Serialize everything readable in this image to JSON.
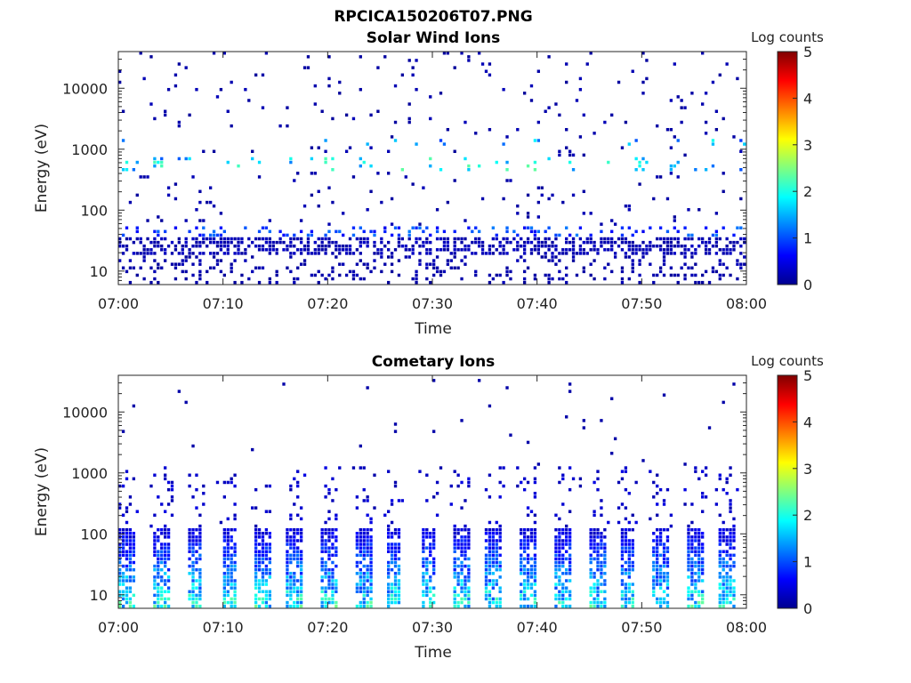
{
  "figure_title": "RPCICA150206T07.PNG",
  "chart_data": [
    {
      "type": "heatmap",
      "title": "Solar Wind Ions",
      "xlabel": "Time",
      "ylabel": "Energy (eV)",
      "x_ticks": [
        "07:00",
        "07:10",
        "07:20",
        "07:30",
        "07:40",
        "07:50",
        "08:00"
      ],
      "xlim_minutes": [
        0,
        60
      ],
      "y_scale": "log",
      "ylim": [
        6,
        40000
      ],
      "y_ticks": [
        {
          "value": 10,
          "label": "10"
        },
        {
          "value": 100,
          "label": "100"
        },
        {
          "value": 1000,
          "label": "1000"
        },
        {
          "value": 10000,
          "label": "10000"
        }
      ],
      "colorbar": {
        "label": "Log counts",
        "range": [
          0,
          5
        ],
        "ticks": [
          "0",
          "1",
          "2",
          "3",
          "4",
          "5"
        ],
        "colormap": "jet"
      },
      "bands": [
        {
          "e_min": 17,
          "e_max": 35,
          "log_counts": 0.25,
          "density": 0.55
        },
        {
          "e_min": 35,
          "e_max": 55,
          "log_counts": 0.9,
          "density": 0.25
        },
        {
          "e_min": 6,
          "e_max": 17,
          "log_counts": 0.2,
          "density": 0.2
        },
        {
          "e_min": 450,
          "e_max": 700,
          "log_counts": 1.7,
          "density": 0.28
        },
        {
          "e_min": 1100,
          "e_max": 1500,
          "log_counts": 1.4,
          "density": 0.15
        },
        {
          "e_min": 55,
          "e_max": 40000,
          "log_counts": 0.2,
          "density": 0.03
        }
      ]
    },
    {
      "type": "heatmap",
      "title": "Cometary Ions",
      "xlabel": "Time",
      "ylabel": "Energy (eV)",
      "x_ticks": [
        "07:00",
        "07:10",
        "07:20",
        "07:30",
        "07:40",
        "07:50",
        "08:00"
      ],
      "xlim_minutes": [
        0,
        60
      ],
      "y_scale": "log",
      "ylim": [
        6,
        40000
      ],
      "y_ticks": [
        {
          "value": 10,
          "label": "10"
        },
        {
          "value": 100,
          "label": "100"
        },
        {
          "value": 1000,
          "label": "1000"
        },
        {
          "value": 10000,
          "label": "10000"
        }
      ],
      "colorbar": {
        "label": "Log counts",
        "range": [
          0,
          5
        ],
        "ticks": [
          "0",
          "1",
          "2",
          "3",
          "4",
          "5"
        ],
        "colormap": "jet"
      },
      "bursts_minutes": [
        0.8,
        4.2,
        7.3,
        10.6,
        13.9,
        16.9,
        20.2,
        23.5,
        26.4,
        29.6,
        32.9,
        35.9,
        39.2,
        42.5,
        45.8,
        48.7,
        51.9,
        55.2,
        58.1
      ],
      "burst_peak_log_counts": 2.3,
      "burst_energy_range": [
        6,
        130
      ]
    }
  ]
}
